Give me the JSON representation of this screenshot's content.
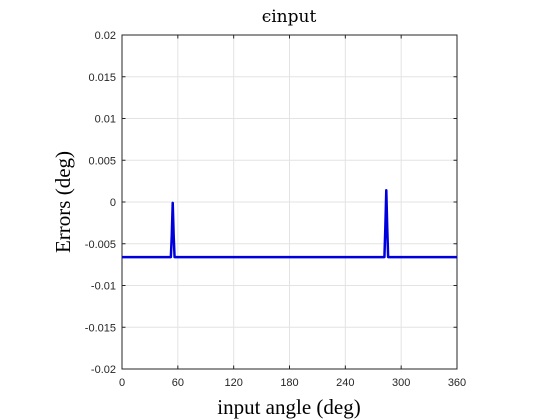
{
  "chart_data": {
    "type": "line",
    "title": "ϵinput",
    "xlabel": "input angle (deg)",
    "ylabel": "Errors (deg)",
    "xlim": [
      0,
      360
    ],
    "ylim": [
      -0.02,
      0.02
    ],
    "xticks": [
      0,
      60,
      120,
      180,
      240,
      300,
      360
    ],
    "yticks": [
      -0.02,
      -0.015,
      -0.01,
      -0.005,
      0,
      0.005,
      0.01,
      0.015,
      0.02
    ],
    "xtick_labels": [
      "0",
      "60",
      "120",
      "180",
      "240",
      "300",
      "360"
    ],
    "ytick_labels": [
      "-0.02",
      "-0.015",
      "-0.01",
      "-0.005",
      "0",
      "0.005",
      "0.01",
      "0.015",
      "0.02"
    ],
    "grid": true,
    "series": [
      {
        "color": "#0000dd",
        "x": [
          0,
          52.5,
          53.5,
          54.5,
          55.5,
          56.5,
          282,
          283,
          284,
          285,
          286,
          360
        ],
        "y": [
          -0.0066,
          -0.0066,
          -0.004,
          -0.0001,
          -0.004,
          -0.0066,
          -0.0066,
          -0.003,
          0.0014,
          -0.003,
          -0.0066,
          -0.0066
        ]
      }
    ]
  }
}
